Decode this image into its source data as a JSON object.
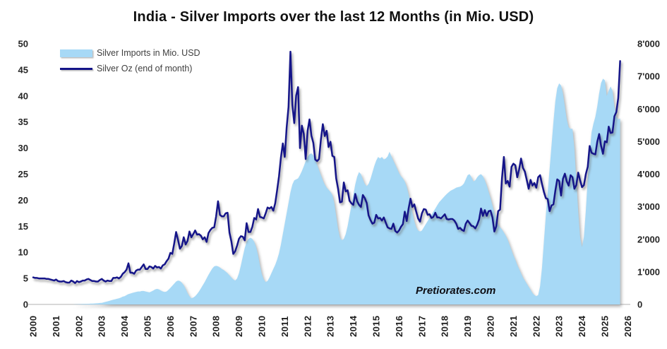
{
  "title": "India - Silver Imports over the last 12 Months (in Mio. USD)",
  "watermark": "Pretiorates.com",
  "chart_data": {
    "type": "area+line combo",
    "x_start": "2000-01",
    "x_end": "2025-09",
    "x_frequency": "monthly",
    "x_tick_labels": [
      "2000",
      "2001",
      "2002",
      "2003",
      "2004",
      "2005",
      "2006",
      "2007",
      "2008",
      "2009",
      "2010",
      "2011",
      "2012",
      "2013",
      "2014",
      "2015",
      "2016",
      "2017",
      "2018",
      "2019",
      "2020",
      "2021",
      "2022",
      "2023",
      "2024",
      "2025",
      "2026"
    ],
    "grid": false,
    "legend_position": "top-left",
    "left_axis": {
      "range": [
        0,
        50
      ],
      "ticks": [
        50,
        45,
        40,
        35,
        30,
        25,
        20,
        15,
        10,
        5,
        0
      ],
      "used_by": "Silver Oz (end of month)"
    },
    "right_axis": {
      "range": [
        0,
        8000
      ],
      "ticks": [
        8000,
        7000,
        6000,
        5000,
        4000,
        3000,
        2000,
        1000,
        0
      ],
      "tick_labels": [
        "8'000",
        "7'000",
        "6'000",
        "5'000",
        "4'000",
        "3'000",
        "2'000",
        "1'000",
        "0"
      ],
      "used_by": "Silver Imports in Mio. USD"
    },
    "series": [
      {
        "name": "Silver Imports in Mio. USD",
        "type": "area",
        "axis": "right",
        "color": "#A7D9F6",
        "values": [
          0,
          0,
          0,
          0,
          0,
          0,
          0,
          0,
          0,
          0,
          0,
          0,
          0,
          0,
          0,
          0,
          0,
          0,
          0,
          0,
          0,
          0,
          5,
          5,
          10,
          10,
          15,
          15,
          20,
          20,
          25,
          25,
          30,
          35,
          40,
          45,
          50,
          65,
          80,
          95,
          110,
          130,
          145,
          160,
          175,
          190,
          210,
          240,
          255,
          290,
          320,
          335,
          355,
          370,
          385,
          400,
          400,
          415,
          415,
          400,
          385,
          370,
          400,
          430,
          465,
          480,
          465,
          430,
          400,
          385,
          400,
          450,
          510,
          575,
          640,
          705,
          735,
          720,
          670,
          590,
          480,
          350,
          255,
          190,
          210,
          255,
          320,
          400,
          495,
          590,
          690,
          800,
          910,
          1010,
          1105,
          1170,
          1185,
          1170,
          1135,
          1090,
          1055,
          1010,
          960,
          895,
          830,
          770,
          735,
          800,
          960,
          1200,
          1470,
          1730,
          1920,
          2015,
          2050,
          2015,
          1920,
          1760,
          1520,
          1200,
          930,
          770,
          690,
          720,
          830,
          960,
          1090,
          1215,
          1375,
          1570,
          1840,
          2160,
          2480,
          2800,
          3120,
          3440,
          3680,
          3810,
          3840,
          3870,
          3970,
          4095,
          4240,
          4400,
          4530,
          4610,
          4640,
          4575,
          4450,
          4290,
          4130,
          3970,
          3810,
          3680,
          3585,
          3520,
          3455,
          3360,
          3120,
          2720,
          2320,
          2050,
          1970,
          2015,
          2160,
          2400,
          2720,
          3040,
          3360,
          3680,
          3920,
          4065,
          4000,
          3840,
          3700,
          3630,
          3700,
          3850,
          4050,
          4250,
          4415,
          4530,
          4480,
          4530,
          4450,
          4480,
          4545,
          4690,
          4545,
          4415,
          4290,
          4160,
          4030,
          3935,
          3870,
          3775,
          3615,
          3390,
          3105,
          2815,
          2560,
          2370,
          2270,
          2240,
          2270,
          2370,
          2465,
          2560,
          2655,
          2750,
          2850,
          2945,
          3040,
          3135,
          3200,
          3265,
          3330,
          3390,
          3440,
          3490,
          3520,
          3550,
          3585,
          3600,
          3615,
          3650,
          3710,
          3840,
          3970,
          4000,
          3905,
          3775,
          3810,
          3905,
          3970,
          4000,
          3935,
          3810,
          3650,
          3455,
          3265,
          3040,
          2815,
          2625,
          2465,
          2370,
          2305,
          2210,
          2110,
          1985,
          1825,
          1665,
          1505,
          1375,
          1215,
          1090,
          960,
          830,
          735,
          640,
          545,
          450,
          350,
          290,
          255,
          290,
          560,
          1120,
          1920,
          2720,
          3440,
          4160,
          4880,
          5600,
          6240,
          6640,
          6785,
          6720,
          6480,
          6080,
          5680,
          5440,
          5390,
          5390,
          4800,
          3840,
          2880,
          2080,
          1760,
          2080,
          2880,
          3840,
          4640,
          5280,
          5550,
          5760,
          6080,
          6480,
          6800,
          6930,
          6880,
          6400,
          6560,
          6690,
          6560,
          6080,
          5760,
          5680,
          5710
        ]
      },
      {
        "name": "Silver Oz (end of month)",
        "type": "line",
        "axis": "left",
        "color": "#151589",
        "values": [
          5.2,
          5.1,
          5.1,
          5.0,
          5.0,
          5.0,
          5.0,
          4.9,
          4.9,
          4.8,
          4.7,
          4.6,
          4.8,
          4.5,
          4.4,
          4.4,
          4.5,
          4.3,
          4.2,
          4.2,
          4.6,
          4.4,
          4.1,
          4.5,
          4.3,
          4.4,
          4.6,
          4.6,
          4.8,
          4.9,
          4.7,
          4.5,
          4.5,
          4.4,
          4.4,
          4.7,
          4.9,
          4.6,
          4.4,
          4.6,
          4.5,
          4.5,
          5.1,
          5.1,
          5.2,
          5.0,
          5.3,
          5.9,
          6.2,
          6.7,
          7.9,
          6.1,
          6.1,
          5.9,
          6.5,
          6.7,
          6.7,
          7.2,
          7.7,
          6.8,
          6.8,
          7.3,
          7.2,
          6.9,
          7.4,
          7.1,
          7.2,
          6.9,
          7.5,
          7.7,
          8.3,
          8.8,
          9.9,
          9.7,
          11.7,
          13.9,
          12.4,
          10.7,
          11.2,
          12.9,
          11.5,
          12.2,
          14.0,
          12.9,
          13.5,
          14.2,
          13.4,
          13.5,
          13.2,
          12.5,
          12.9,
          12.0,
          13.7,
          14.3,
          14.7,
          14.8,
          16.9,
          19.8,
          17.2,
          16.9,
          16.9,
          17.5,
          17.6,
          13.8,
          12.1,
          9.7,
          10.2,
          11.3,
          12.6,
          13.1,
          13.0,
          12.3,
          15.6,
          13.9,
          13.9,
          14.9,
          16.6,
          16.3,
          18.3,
          16.8,
          16.7,
          16.5,
          17.5,
          18.6,
          18.4,
          18.7,
          18.0,
          19.4,
          21.9,
          24.6,
          28.2,
          30.9,
          28.3,
          33.9,
          37.9,
          48.5,
          38.3,
          34.8,
          40.1,
          41.7,
          30.0,
          34.3,
          32.7,
          27.9,
          33.3,
          35.5,
          32.4,
          31.0,
          27.8,
          27.5,
          27.9,
          31.7,
          34.6,
          32.3,
          33.3,
          30.2,
          31.2,
          28.5,
          28.3,
          24.2,
          22.2,
          19.6,
          19.7,
          23.4,
          21.7,
          21.9,
          19.9,
          19.4,
          19.1,
          21.2,
          19.8,
          19.1,
          18.7,
          21.0,
          20.4,
          19.5,
          17.1,
          16.2,
          15.5,
          15.7,
          17.2,
          16.5,
          16.6,
          16.1,
          16.7,
          15.7,
          14.8,
          14.6,
          14.5,
          15.5,
          14.1,
          13.8,
          14.2,
          14.9,
          15.4,
          17.8,
          16.0,
          18.4,
          20.3,
          18.7,
          19.2,
          17.8,
          16.5,
          15.9,
          17.5,
          18.3,
          18.2,
          17.2,
          17.3,
          16.6,
          16.8,
          17.6,
          16.7,
          16.7,
          16.5,
          16.9,
          17.3,
          16.4,
          16.3,
          16.4,
          16.4,
          16.1,
          15.5,
          14.5,
          14.7,
          14.3,
          14.1,
          15.5,
          16.1,
          15.6,
          15.1,
          15.0,
          14.6,
          15.3,
          16.3,
          18.4,
          17.0,
          18.1,
          17.0,
          17.9,
          18.0,
          16.7,
          14.0,
          15.0,
          17.9,
          18.2,
          24.2,
          28.3,
          23.2,
          23.7,
          22.6,
          26.4,
          27.0,
          26.7,
          24.4,
          25.9,
          28.0,
          26.2,
          25.5,
          23.9,
          22.2,
          23.9,
          22.8,
          23.3,
          22.4,
          24.4,
          24.8,
          23.1,
          21.6,
          20.4,
          20.2,
          17.9,
          19.0,
          19.2,
          21.8,
          24.0,
          23.7,
          20.9,
          24.1,
          25.1,
          23.6,
          22.8,
          24.8,
          24.4,
          22.2,
          22.9,
          25.3,
          23.8,
          22.5,
          22.9,
          25.0,
          26.4,
          30.4,
          29.1,
          28.9,
          28.8,
          31.2,
          32.7,
          30.4,
          28.9,
          31.3,
          31.1,
          34.1,
          32.9,
          33.0,
          36.1,
          36.9,
          39.6,
          46.7
        ]
      }
    ]
  }
}
